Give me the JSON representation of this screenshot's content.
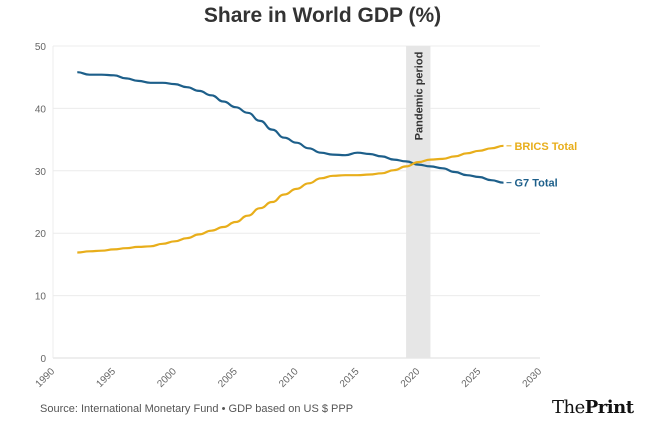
{
  "chart_data": {
    "type": "line",
    "title": "Share in World GDP (%)",
    "xlabel": "",
    "ylabel": "",
    "xlim": [
      1990,
      2030
    ],
    "ylim": [
      0,
      50
    ],
    "x_ticks": [
      1990,
      1995,
      2000,
      2005,
      2010,
      2015,
      2020,
      2025,
      2030
    ],
    "y_ticks": [
      0,
      10,
      20,
      30,
      40,
      50
    ],
    "grid": true,
    "x": [
      1992,
      1993,
      1994,
      1995,
      1996,
      1997,
      1998,
      1999,
      2000,
      2001,
      2002,
      2003,
      2004,
      2005,
      2006,
      2007,
      2008,
      2009,
      2010,
      2011,
      2012,
      2013,
      2014,
      2015,
      2016,
      2017,
      2018,
      2019,
      2020,
      2021,
      2022,
      2023,
      2024,
      2025,
      2026,
      2027
    ],
    "series": [
      {
        "name": "G7 Total",
        "color": "#1d5f8a",
        "values": [
          45.8,
          45.4,
          45.4,
          45.3,
          44.8,
          44.4,
          44.1,
          44.1,
          43.9,
          43.4,
          42.8,
          42.1,
          41.1,
          40.2,
          39.3,
          38.0,
          36.6,
          35.3,
          34.5,
          33.6,
          32.9,
          32.6,
          32.5,
          32.9,
          32.7,
          32.3,
          31.8,
          31.5,
          31.0,
          30.7,
          30.4,
          29.8,
          29.3,
          29.0,
          28.5,
          28.1
        ]
      },
      {
        "name": "BRICS Total",
        "color": "#e8ae1b",
        "values": [
          16.9,
          17.1,
          17.2,
          17.4,
          17.6,
          17.8,
          17.9,
          18.3,
          18.7,
          19.2,
          19.8,
          20.4,
          21.0,
          21.8,
          22.8,
          24.0,
          25.0,
          26.2,
          27.1,
          28.0,
          28.8,
          29.2,
          29.3,
          29.3,
          29.4,
          29.6,
          30.1,
          30.7,
          31.4,
          31.8,
          31.9,
          32.3,
          32.8,
          33.2,
          33.6,
          34.0
        ]
      }
    ],
    "annotations": [
      {
        "type": "band",
        "x_start": 2019,
        "x_end": 2021,
        "label": "Pandemic period",
        "color": "#e6e6e6"
      }
    ],
    "legend": "direct labels at line ends (right)"
  },
  "footer": {
    "source": "Source: International Monetary Fund • GDP based on US $ PPP",
    "logo_regular": "The",
    "logo_bold": "Print"
  }
}
